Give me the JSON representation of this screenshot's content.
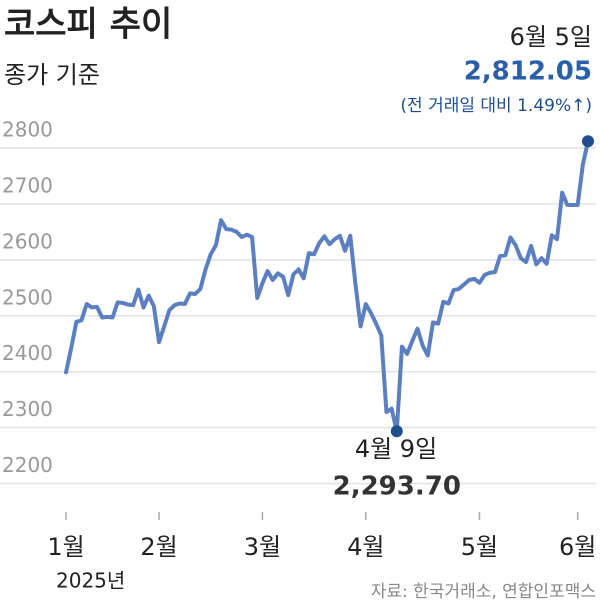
{
  "chart_data": {
    "type": "line",
    "title": "코스피 추이",
    "subtitle": "종가 기준",
    "year_label": "2025년",
    "source": "자료: 한국거래소, 연합인포맥스",
    "annotations": [
      "4월 9일",
      "6월 5일"
    ],
    "change_note": "(전 거래일 대비 1.49%↑)",
    "color": "#5b7fc0",
    "marker_color": "#1f4e8c",
    "grid": true,
    "ylim": [
      2160,
      2850
    ],
    "yticks": [
      2200,
      2300,
      2400,
      2500,
      2600,
      2700,
      2800
    ],
    "categories": [
      "1월",
      null,
      null,
      null,
      null,
      null,
      null,
      null,
      null,
      null,
      null,
      null,
      null,
      null,
      null,
      null,
      null,
      null,
      "2월",
      null,
      null,
      null,
      null,
      null,
      null,
      null,
      null,
      null,
      null,
      null,
      null,
      null,
      null,
      null,
      null,
      null,
      null,
      null,
      "3월",
      null,
      null,
      null,
      null,
      null,
      null,
      null,
      null,
      null,
      null,
      null,
      null,
      null,
      null,
      null,
      null,
      null,
      null,
      null,
      "4월",
      null,
      null,
      null,
      null,
      null,
      null,
      null,
      null,
      null,
      null,
      null,
      null,
      null,
      null,
      null,
      null,
      null,
      null,
      null,
      null,
      null,
      "5월",
      null,
      null,
      null,
      null,
      null,
      null,
      null,
      null,
      null,
      null,
      null,
      null,
      null,
      null,
      null,
      null,
      null,
      null,
      "6월",
      null,
      null
    ],
    "values": [
      2399,
      2442,
      2489,
      2492,
      2521,
      2515,
      2516,
      2497,
      2498,
      2497,
      2524,
      2523,
      2520,
      2519,
      2547,
      2515,
      2536,
      2517,
      2453,
      2481,
      2510,
      2519,
      2522,
      2521,
      2540,
      2539,
      2548,
      2583,
      2610,
      2626,
      2671,
      2655,
      2654,
      2650,
      2641,
      2645,
      2641,
      2532,
      2558,
      2580,
      2564,
      2576,
      2570,
      2537,
      2574,
      2583,
      2567,
      2612,
      2610,
      2630,
      2642,
      2628,
      2637,
      2643,
      2616,
      2643,
      2557,
      2481,
      2521,
      2505,
      2486,
      2465,
      2328,
      2334,
      2293.7,
      2445,
      2432,
      2455,
      2477,
      2447,
      2429,
      2488,
      2486,
      2525,
      2522,
      2546,
      2548,
      2556,
      2564,
      2566,
      2559,
      2573,
      2577,
      2578,
      2607,
      2608,
      2640,
      2626,
      2603,
      2596,
      2625,
      2592,
      2603,
      2593,
      2644,
      2637,
      2720,
      2698,
      2698,
      2698,
      2770,
      2812.05
    ],
    "value_labels": [
      null,
      null,
      null,
      null,
      null,
      null,
      null,
      null,
      null,
      null,
      null,
      null,
      null,
      null,
      null,
      null,
      null,
      null,
      null,
      null,
      null,
      null,
      null,
      null,
      null,
      null,
      null,
      null,
      null,
      null,
      null,
      null,
      null,
      null,
      null,
      null,
      null,
      null,
      null,
      null,
      null,
      null,
      null,
      null,
      null,
      null,
      null,
      null,
      null,
      null,
      null,
      null,
      null,
      null,
      null,
      null,
      null,
      null,
      null,
      null,
      null,
      null,
      null,
      null,
      "2,293.70",
      null,
      null,
      null,
      null,
      null,
      null,
      null,
      null,
      null,
      null,
      null,
      null,
      null,
      null,
      null,
      null,
      null,
      null,
      null,
      null,
      null,
      null,
      null,
      null,
      null,
      null,
      null,
      null,
      null,
      null,
      null,
      null,
      null,
      null,
      null,
      null,
      "2,812.05"
    ]
  }
}
